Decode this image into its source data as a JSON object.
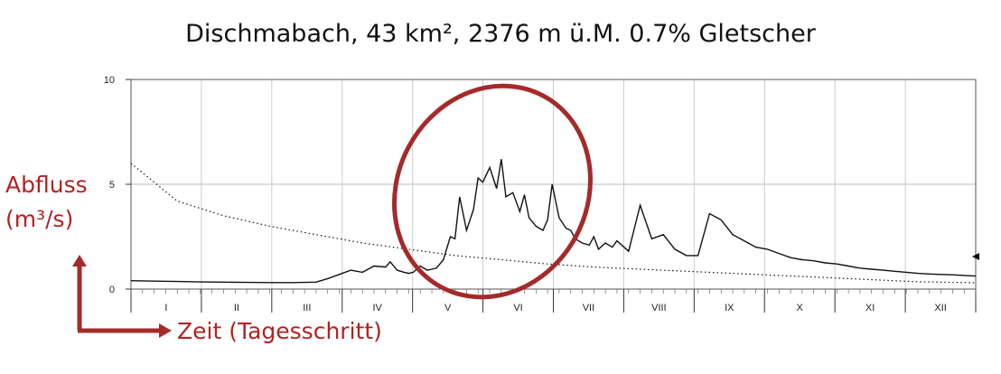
{
  "chart_data": {
    "type": "line",
    "title": "Dischmabach, 43 km², 2376 m ü.M. 0.7% Gletscher",
    "ylabel_line1": "Abfluss",
    "ylabel_line2": "(m³/s)",
    "xlabel": "Zeit (Tagesschritt)",
    "ylim": [
      0,
      10
    ],
    "yticks": [
      "0",
      "5",
      "10"
    ],
    "months": [
      "I",
      "II",
      "III",
      "IV",
      "V",
      "VI",
      "VII",
      "VIII",
      "IX",
      "X",
      "XI",
      "XII"
    ],
    "grid": true,
    "series": [
      {
        "style": "solid",
        "x": [
          0,
          10,
          20,
          30,
          40,
          50,
          60,
          70,
          80,
          85,
          90,
          95,
          100,
          105,
          110,
          112,
          115,
          118,
          120,
          122,
          125,
          128,
          130,
          132,
          135,
          138,
          140,
          142,
          145,
          148,
          150,
          152,
          155,
          158,
          160,
          162,
          165,
          168,
          170,
          172,
          175,
          178,
          180,
          182,
          185,
          188,
          190,
          192,
          195,
          198,
          200,
          202,
          205,
          208,
          210,
          215,
          220,
          225,
          230,
          235,
          240,
          245,
          250,
          255,
          260,
          265,
          270,
          275,
          280,
          285,
          290,
          295,
          300,
          305,
          310,
          315,
          320,
          325,
          330,
          335,
          340,
          345,
          350,
          355,
          360,
          365
        ],
        "y": [
          0.4,
          0.38,
          0.36,
          0.34,
          0.33,
          0.32,
          0.31,
          0.31,
          0.33,
          0.5,
          0.7,
          0.9,
          0.8,
          1.1,
          1.05,
          1.3,
          0.9,
          0.8,
          0.75,
          0.8,
          1.1,
          0.9,
          0.95,
          1.0,
          1.4,
          2.5,
          2.4,
          4.4,
          2.8,
          3.8,
          5.3,
          5.1,
          5.8,
          4.8,
          6.2,
          4.4,
          4.6,
          3.7,
          4.5,
          3.4,
          3.0,
          2.8,
          3.3,
          5.0,
          3.4,
          2.9,
          2.8,
          2.4,
          2.2,
          2.1,
          2.5,
          1.9,
          2.2,
          2.0,
          2.3,
          1.8,
          4.0,
          2.4,
          2.6,
          1.9,
          1.6,
          1.6,
          3.6,
          3.3,
          2.6,
          2.3,
          2.0,
          1.9,
          1.7,
          1.5,
          1.4,
          1.35,
          1.25,
          1.2,
          1.1,
          1.0,
          0.95,
          0.9,
          0.85,
          0.8,
          0.75,
          0.72,
          0.7,
          0.68,
          0.65,
          0.62
        ]
      },
      {
        "style": "dotted",
        "x": [
          0,
          20,
          40,
          60,
          80,
          100,
          120,
          140,
          160,
          180,
          200,
          220,
          240,
          260,
          280,
          300,
          320,
          340,
          365
        ],
        "y": [
          6.0,
          4.2,
          3.5,
          3.0,
          2.6,
          2.2,
          1.9,
          1.6,
          1.4,
          1.2,
          1.05,
          0.95,
          0.85,
          0.75,
          0.65,
          0.55,
          0.45,
          0.35,
          0.3
        ]
      }
    ]
  },
  "annotation": {
    "color": "#a52a2a"
  }
}
